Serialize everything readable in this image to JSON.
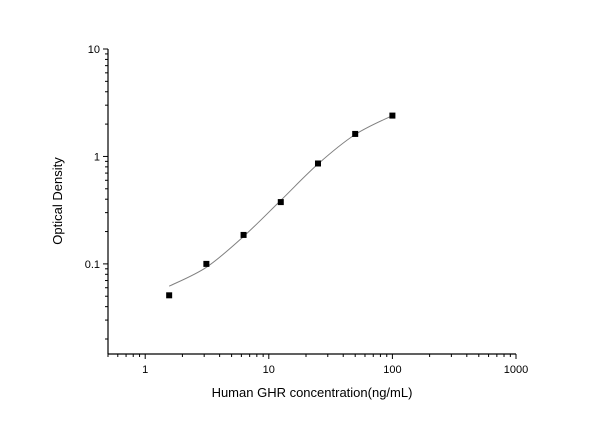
{
  "chart_data": {
    "type": "scatter",
    "title": "",
    "xlabel": "Human GHR concentration(ng/mL)",
    "ylabel": "Optical Density",
    "x_scale": "log",
    "y_scale": "log",
    "xlim": [
      0.5,
      1000
    ],
    "ylim": [
      0.0145,
      10
    ],
    "x_ticks": [
      1,
      10,
      100,
      1000
    ],
    "x_tick_labels": [
      "1",
      "10",
      "100",
      "1000"
    ],
    "y_ticks": [
      0.1,
      1,
      10
    ],
    "y_tick_labels": [
      "0.1",
      "1",
      "10"
    ],
    "grid": false,
    "legend": "none",
    "series": [
      {
        "marker": "square",
        "color": "#000000",
        "x": [
          1.5625,
          3.125,
          6.25,
          12.5,
          25,
          50,
          100
        ],
        "y": [
          0.051,
          0.1,
          0.186,
          0.376,
          0.86,
          1.62,
          2.4
        ]
      }
    ],
    "fit_curve": {
      "color": "#808080",
      "x": [
        1.5625,
        3.125,
        6.25,
        12.5,
        25,
        50,
        100
      ],
      "y": [
        0.062,
        0.093,
        0.18,
        0.39,
        0.85,
        1.6,
        2.4
      ]
    }
  }
}
